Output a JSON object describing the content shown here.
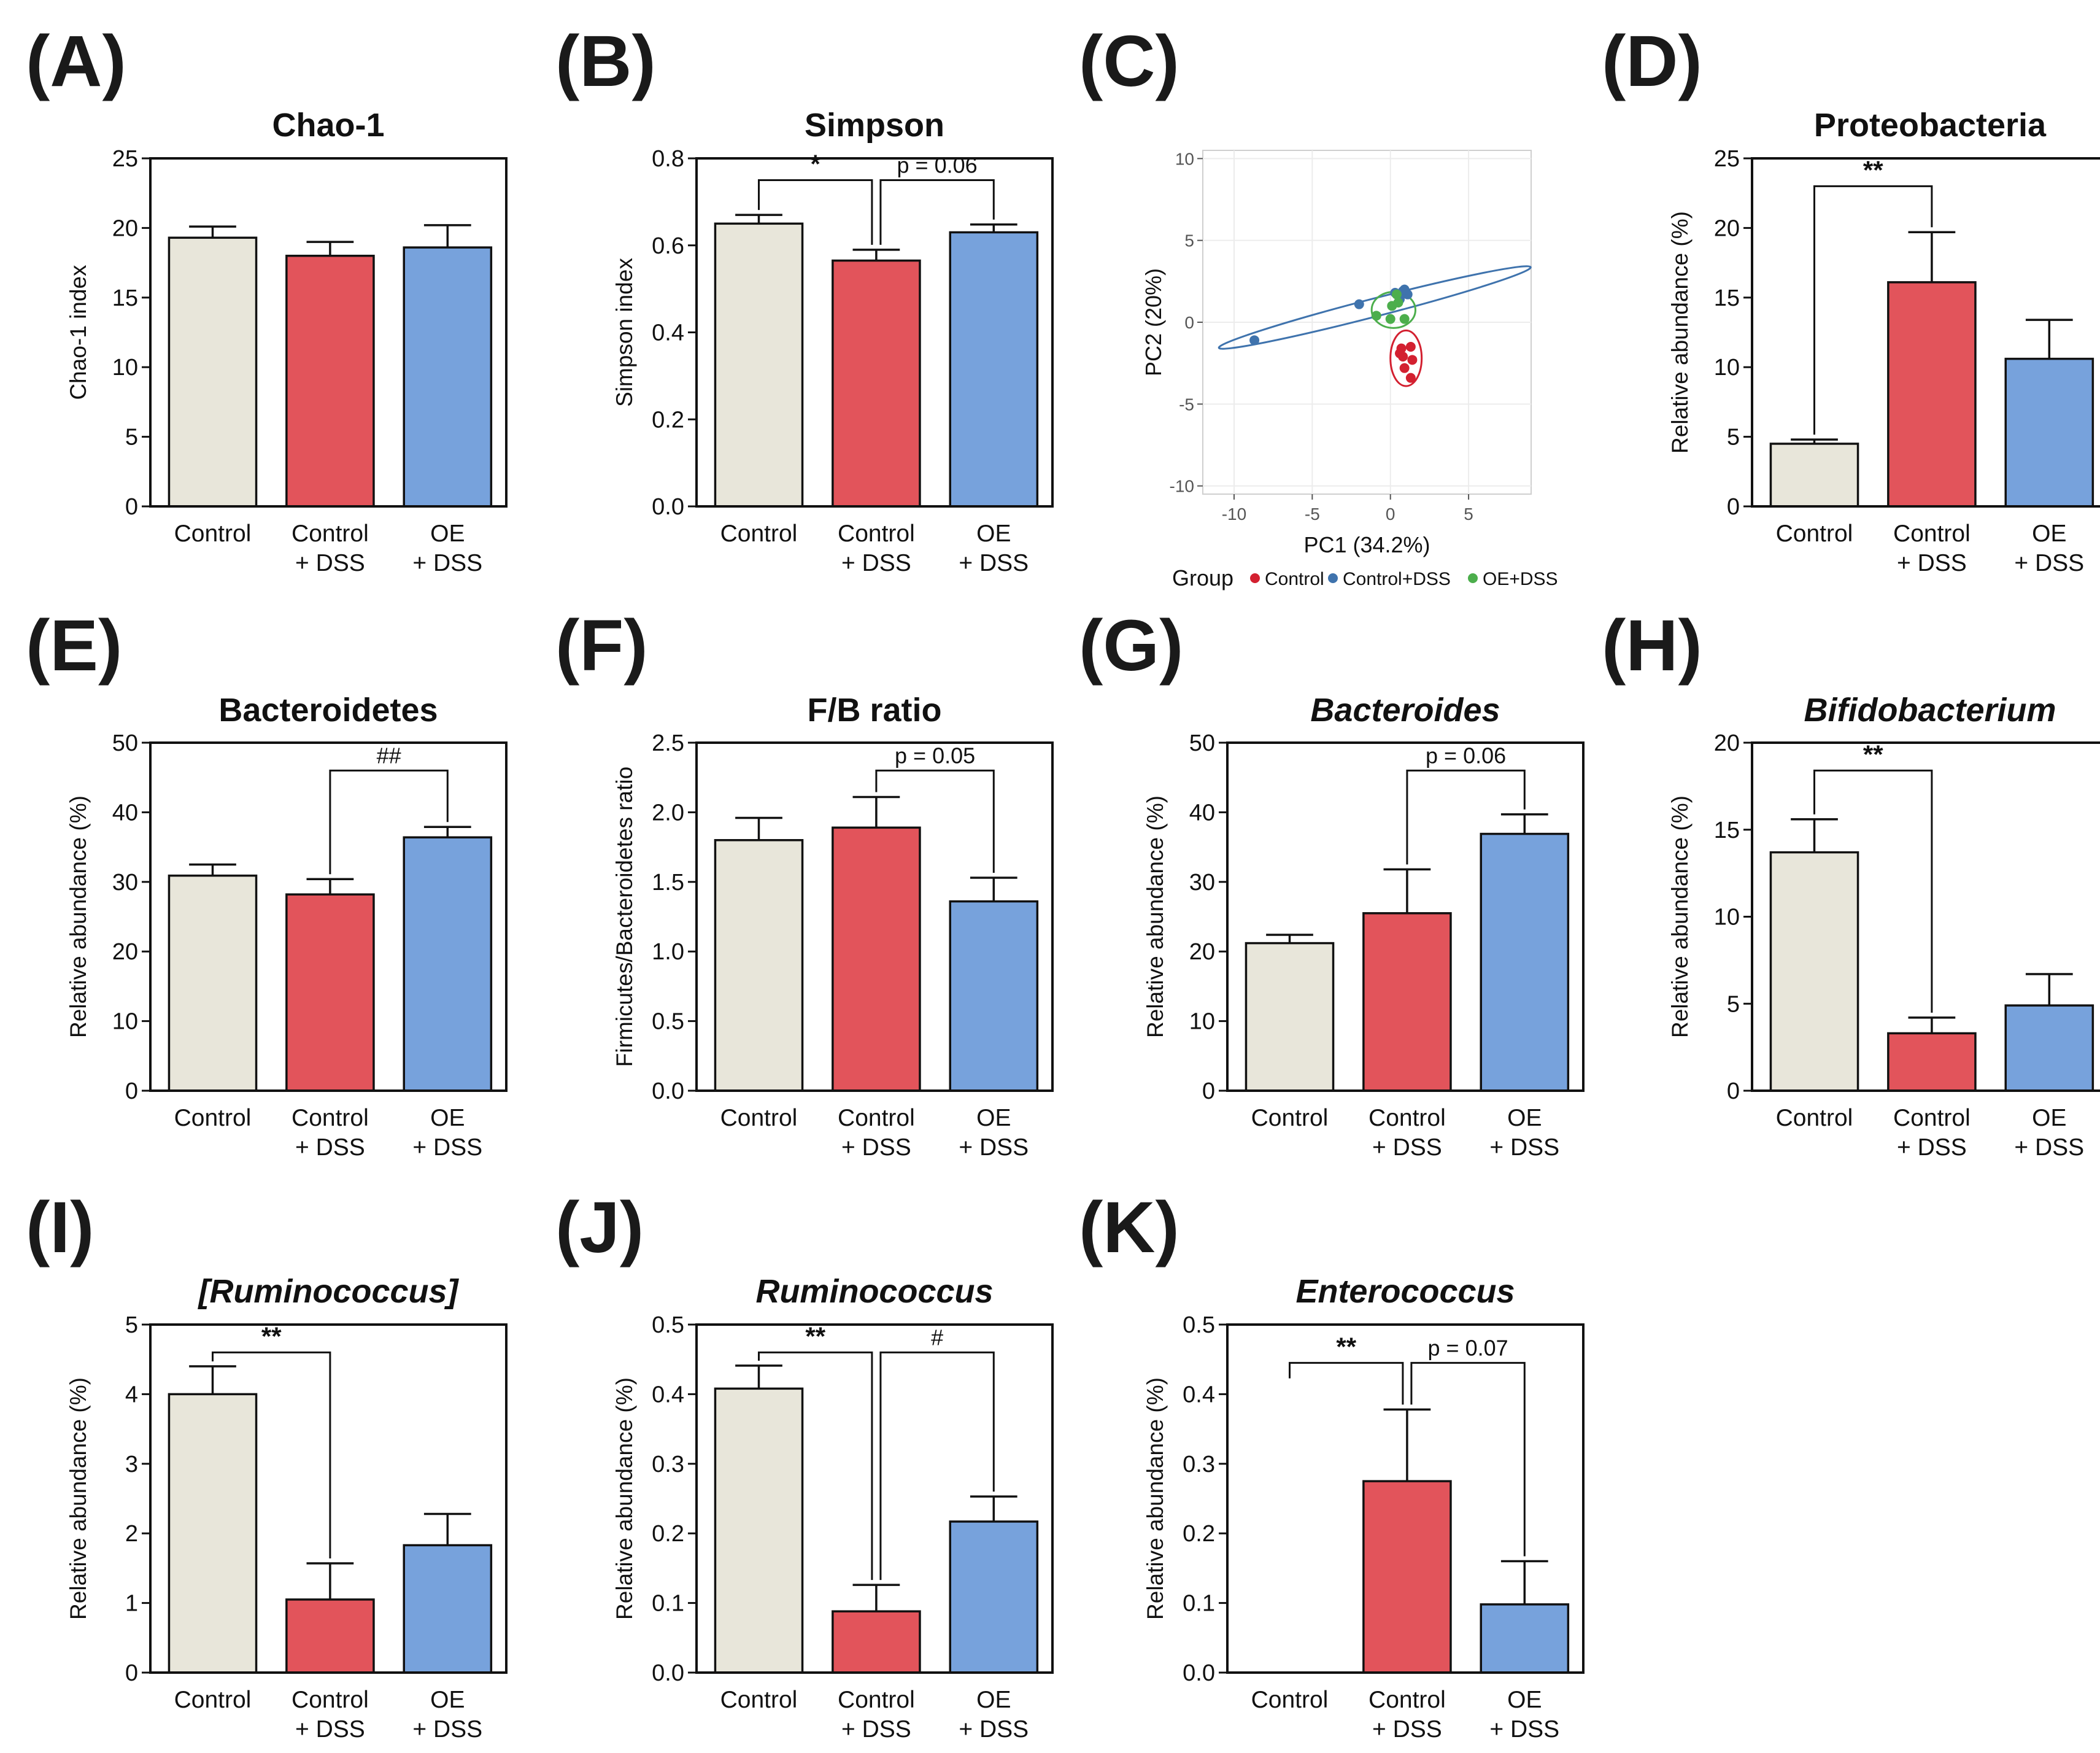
{
  "figure": {
    "group_colors": {
      "Control": "#e8e6da",
      "Control + DSS": "#e2545b",
      "OE + DSS": "#77a2dc"
    },
    "legend_colors": {
      "Control": "#d32030",
      "Control+DSS": "#3f73ad",
      "OE+DSS": "#4cae4c"
    }
  },
  "chart_data": [
    {
      "id": "A",
      "letter": "(A)",
      "type": "bar",
      "title": "Chao-1",
      "title_italic": false,
      "ylabel": "Chao-1 index",
      "categories": [
        [
          "Control"
        ],
        [
          "Control",
          "+ DSS"
        ],
        [
          "OE",
          "+ DSS"
        ]
      ],
      "values": [
        19.3,
        18.0,
        18.6
      ],
      "errors": [
        0.8,
        1.0,
        1.6
      ],
      "ylim": [
        0,
        25
      ],
      "yticks": [
        "0",
        "5",
        "10",
        "15",
        "20",
        "25"
      ],
      "ytick_values": [
        0,
        5,
        10,
        15,
        20,
        25
      ],
      "brackets": []
    },
    {
      "id": "B",
      "letter": "(B)",
      "type": "bar",
      "title": "Simpson",
      "title_italic": false,
      "ylabel": "Simpson index",
      "categories": [
        [
          "Control"
        ],
        [
          "Control",
          "+ DSS"
        ],
        [
          "OE",
          "+ DSS"
        ]
      ],
      "values": [
        0.65,
        0.565,
        0.63
      ],
      "errors": [
        0.02,
        0.025,
        0.018
      ],
      "ylim": [
        0,
        0.8
      ],
      "yticks": [
        "0.0",
        "0.2",
        "0.4",
        "0.6",
        "0.8"
      ],
      "ytick_values": [
        0,
        0.2,
        0.4,
        0.6,
        0.8
      ],
      "brackets": [
        {
          "from": 0,
          "to": 1,
          "level": 0.75,
          "label": "*",
          "star": true
        },
        {
          "from": 1,
          "to": 2,
          "level": 0.75,
          "label": "p = 0.06",
          "star": false
        }
      ]
    },
    {
      "id": "C",
      "letter": "(C)",
      "type": "scatter",
      "xlabel": "PC1 (34.2%)",
      "ylabel": "PC2 (20%)",
      "xlim": [
        -12,
        9
      ],
      "ylim": [
        -10.5,
        10.5
      ],
      "xticks": [
        "-10",
        "-5",
        "0",
        "5"
      ],
      "xtick_values": [
        -10,
        -5,
        0,
        5
      ],
      "yticks": [
        "-10",
        "-5",
        "0",
        "5",
        "10"
      ],
      "ytick_values": [
        -10,
        -5,
        0,
        5,
        10
      ],
      "legend_title": "Group",
      "legend": [
        "Control",
        "Control+DSS",
        "OE+DSS"
      ],
      "series": [
        {
          "name": "Control",
          "points": [
            [
              0.7,
              -1.6
            ],
            [
              1.3,
              -1.5
            ],
            [
              0.8,
              -2.1
            ],
            [
              1.4,
              -2.3
            ],
            [
              0.9,
              -2.8
            ],
            [
              1.3,
              -3.4
            ],
            [
              0.6,
              -1.9
            ]
          ]
        },
        {
          "name": "Control+DSS",
          "points": [
            [
              -8.7,
              -1.1
            ],
            [
              -2.0,
              1.1
            ],
            [
              0.3,
              1.8
            ],
            [
              0.8,
              1.9
            ],
            [
              1.1,
              1.7
            ],
            [
              0.6,
              1.4
            ],
            [
              0.9,
              2.0
            ]
          ]
        },
        {
          "name": "OE+DSS",
          "points": [
            [
              -0.9,
              0.4
            ],
            [
              0.0,
              0.2
            ],
            [
              0.5,
              1.2
            ],
            [
              0.9,
              0.2
            ],
            [
              0.4,
              1.7
            ],
            [
              0.1,
              1.0
            ]
          ]
        }
      ],
      "ellipses": [
        {
          "name": "Control+DSS",
          "cx": -1.0,
          "cy": 0.9,
          "rx": 10.3,
          "ry": 0.55,
          "angle_deg": 14.5
        },
        {
          "name": "OE+DSS",
          "cx": 0.2,
          "cy": 0.75,
          "rx": 1.4,
          "ry": 1.1,
          "angle_deg": 0
        },
        {
          "name": "Control",
          "cx": 1.0,
          "cy": -2.2,
          "rx": 1.0,
          "ry": 1.7,
          "angle_deg": 0
        }
      ]
    },
    {
      "id": "D",
      "letter": "(D)",
      "type": "bar",
      "title": "Proteobacteria",
      "title_italic": false,
      "ylabel": "Relative abundance (%)",
      "categories": [
        [
          "Control"
        ],
        [
          "Control",
          "+ DSS"
        ],
        [
          "OE",
          "+ DSS"
        ]
      ],
      "values": [
        4.5,
        16.1,
        10.6
      ],
      "errors": [
        0.3,
        3.6,
        2.8
      ],
      "ylim": [
        0,
        25
      ],
      "yticks": [
        "0",
        "5",
        "10",
        "15",
        "20",
        "25"
      ],
      "ytick_values": [
        0,
        5,
        10,
        15,
        20,
        25
      ],
      "brackets": [
        {
          "from": 0,
          "to": 1,
          "level": 23.0,
          "label": "**",
          "star": true
        }
      ]
    },
    {
      "id": "E",
      "letter": "(E)",
      "type": "bar",
      "title": "Bacteroidetes",
      "title_italic": false,
      "ylabel": "Relative abundance (%)",
      "categories": [
        [
          "Control"
        ],
        [
          "Control",
          "+ DSS"
        ],
        [
          "OE",
          "+ DSS"
        ]
      ],
      "values": [
        30.9,
        28.2,
        36.4
      ],
      "errors": [
        1.6,
        2.2,
        1.5
      ],
      "ylim": [
        0,
        50
      ],
      "yticks": [
        "0",
        "10",
        "20",
        "30",
        "40",
        "50"
      ],
      "ytick_values": [
        0,
        10,
        20,
        30,
        40,
        50
      ],
      "brackets": [
        {
          "from": 1,
          "to": 2,
          "level": 46.0,
          "label": "##",
          "star": false
        }
      ]
    },
    {
      "id": "F",
      "letter": "(F)",
      "type": "bar",
      "title": "F/B ratio",
      "title_italic": false,
      "ylabel": "Firmicutes/Bacteroidetes ratio",
      "categories": [
        [
          "Control"
        ],
        [
          "Control",
          "+ DSS"
        ],
        [
          "OE",
          "+ DSS"
        ]
      ],
      "values": [
        1.8,
        1.89,
        1.36
      ],
      "errors": [
        0.16,
        0.22,
        0.17
      ],
      "ylim": [
        0,
        2.5
      ],
      "yticks": [
        "0.0",
        "0.5",
        "1.0",
        "1.5",
        "2.0",
        "2.5"
      ],
      "ytick_values": [
        0,
        0.5,
        1.0,
        1.5,
        2.0,
        2.5
      ],
      "brackets": [
        {
          "from": 1,
          "to": 2,
          "level": 2.3,
          "label": "p = 0.05",
          "star": false
        }
      ]
    },
    {
      "id": "G",
      "letter": "(G)",
      "type": "bar",
      "title": "Bacteroides",
      "title_italic": true,
      "ylabel": "Relative abundance (%)",
      "categories": [
        [
          "Control"
        ],
        [
          "Control",
          "+ DSS"
        ],
        [
          "OE",
          "+ DSS"
        ]
      ],
      "values": [
        21.2,
        25.5,
        36.9
      ],
      "errors": [
        1.2,
        6.3,
        2.8
      ],
      "ylim": [
        0,
        50
      ],
      "yticks": [
        "0",
        "10",
        "20",
        "30",
        "40",
        "50"
      ],
      "ytick_values": [
        0,
        10,
        20,
        30,
        40,
        50
      ],
      "brackets": [
        {
          "from": 1,
          "to": 2,
          "level": 46.0,
          "label": "p = 0.06",
          "star": false
        }
      ]
    },
    {
      "id": "H",
      "letter": "(H)",
      "type": "bar",
      "title": "Bifidobacterium",
      "title_italic": true,
      "ylabel": "Relative abundance (%)",
      "categories": [
        [
          "Control"
        ],
        [
          "Control",
          "+ DSS"
        ],
        [
          "OE",
          "+ DSS"
        ]
      ],
      "values": [
        13.7,
        3.3,
        4.9
      ],
      "errors": [
        1.9,
        0.9,
        1.8
      ],
      "ylim": [
        0,
        20
      ],
      "yticks": [
        "0",
        "5",
        "10",
        "15",
        "20"
      ],
      "ytick_values": [
        0,
        5,
        10,
        15,
        20
      ],
      "brackets": [
        {
          "from": 0,
          "to": 1,
          "level": 18.4,
          "label": "**",
          "star": true
        }
      ]
    },
    {
      "id": "I",
      "letter": "(I)",
      "type": "bar",
      "title": "[Ruminococcus]",
      "title_italic": true,
      "ylabel": "Relative abundance (%)",
      "categories": [
        [
          "Control"
        ],
        [
          "Control",
          "+ DSS"
        ],
        [
          "OE",
          "+ DSS"
        ]
      ],
      "values": [
        4.0,
        1.05,
        1.83
      ],
      "errors": [
        0.4,
        0.52,
        0.45
      ],
      "ylim": [
        0,
        5
      ],
      "yticks": [
        "0",
        "1",
        "2",
        "3",
        "4",
        "5"
      ],
      "ytick_values": [
        0,
        1,
        2,
        3,
        4,
        5
      ],
      "brackets": [
        {
          "from": 0,
          "to": 1,
          "level": 4.6,
          "label": "**",
          "star": true
        }
      ]
    },
    {
      "id": "J",
      "letter": "(J)",
      "type": "bar",
      "title": "Ruminococcus",
      "title_italic": true,
      "ylabel": "Relative abundance (%)",
      "categories": [
        [
          "Control"
        ],
        [
          "Control",
          "+ DSS"
        ],
        [
          "OE",
          "+ DSS"
        ]
      ],
      "values": [
        0.408,
        0.088,
        0.217
      ],
      "errors": [
        0.033,
        0.038,
        0.036
      ],
      "ylim": [
        0,
        0.5
      ],
      "yticks": [
        "0.0",
        "0.1",
        "0.2",
        "0.3",
        "0.4",
        "0.5"
      ],
      "ytick_values": [
        0,
        0.1,
        0.2,
        0.3,
        0.4,
        0.5
      ],
      "brackets": [
        {
          "from": 0,
          "to": 1,
          "level": 0.46,
          "label": "**",
          "star": true
        },
        {
          "from": 1,
          "to": 2,
          "level": 0.46,
          "label": "#",
          "star": false
        }
      ]
    },
    {
      "id": "K",
      "letter": "(K)",
      "type": "bar",
      "title": "Enterococcus",
      "title_italic": true,
      "ylabel": "Relative abundance (%)",
      "categories": [
        [
          "Control"
        ],
        [
          "Control",
          "+ DSS"
        ],
        [
          "OE",
          "+ DSS"
        ]
      ],
      "values": [
        0.0,
        0.275,
        0.098
      ],
      "errors": [
        0.0,
        0.103,
        0.062
      ],
      "ylim": [
        0,
        0.5
      ],
      "yticks": [
        "0.0",
        "0.1",
        "0.2",
        "0.3",
        "0.4",
        "0.5"
      ],
      "ytick_values": [
        0,
        0.1,
        0.2,
        0.3,
        0.4,
        0.5
      ],
      "brackets": [
        {
          "from": 0,
          "to": 1,
          "level": 0.445,
          "label": "**",
          "star": true
        },
        {
          "from": 1,
          "to": 2,
          "level": 0.445,
          "label": "p = 0.07",
          "star": false
        }
      ]
    }
  ]
}
